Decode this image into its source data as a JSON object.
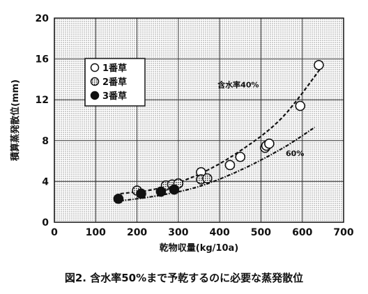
{
  "chart_data": {
    "type": "scatter",
    "title": "",
    "caption": "図2. 含水率50%まで予乾するのに必要な蒸発散位",
    "xlabel": "乾物収量(kg/10a)",
    "ylabel": "積算蒸発散位(mm)",
    "xlim": [
      0,
      700
    ],
    "ylim": [
      0,
      20
    ],
    "x_ticks": [
      0,
      100,
      200,
      300,
      400,
      500,
      600,
      700
    ],
    "y_ticks": [
      0,
      4,
      8,
      12,
      16,
      20
    ],
    "grid": true,
    "legend_position": "upper-left",
    "series": [
      {
        "name": "1番草",
        "marker": "open-circle",
        "points": [
          [
            355,
            4.9
          ],
          [
            425,
            5.6
          ],
          [
            450,
            6.4
          ],
          [
            510,
            7.3
          ],
          [
            513,
            7.5
          ],
          [
            520,
            7.7
          ],
          [
            595,
            11.4
          ],
          [
            640,
            15.4
          ]
        ]
      },
      {
        "name": "2番草",
        "marker": "hatched-circle",
        "points": [
          [
            200,
            3.1
          ],
          [
            270,
            3.6
          ],
          [
            285,
            3.7
          ],
          [
            300,
            3.8
          ],
          [
            355,
            4.2
          ],
          [
            370,
            4.3
          ]
        ]
      },
      {
        "name": "3番草",
        "marker": "filled-circle",
        "points": [
          [
            155,
            2.3
          ],
          [
            210,
            2.8
          ],
          [
            258,
            3.0
          ],
          [
            290,
            3.2
          ]
        ]
      }
    ],
    "curves": [
      {
        "label": "含水率40%",
        "x": [
          160,
          250,
          350,
          450,
          550,
          645
        ],
        "y": [
          2.8,
          3.3,
          4.7,
          7.0,
          10.2,
          15.1
        ]
      },
      {
        "label": "60%",
        "x": [
          160,
          250,
          350,
          450,
          550,
          630
        ],
        "y": [
          2.1,
          2.6,
          3.5,
          5.1,
          7.2,
          9.3
        ]
      }
    ]
  }
}
